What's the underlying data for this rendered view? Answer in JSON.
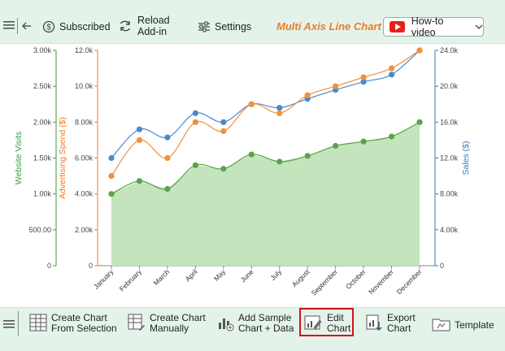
{
  "toolbar": {
    "subscribed_label": "Subscribed",
    "reload_label": "Reload\nAdd-in",
    "settings_label": "Settings",
    "chart_title": "Multi Axis Line Chart",
    "howto_label": "How-to video"
  },
  "bottom_toolbar": {
    "create_selection_label": "Create Chart\nFrom Selection",
    "create_manual_label": "Create Chart\nManually",
    "add_sample_label": "Add Sample\nChart + Data",
    "edit_chart_label": "Edit\nChart",
    "export_chart_label": "Export\nChart",
    "template_label": "Template"
  },
  "chart_data": {
    "type": "line",
    "categories": [
      "January",
      "February",
      "March",
      "April",
      "May",
      "June",
      "July",
      "August",
      "September",
      "October",
      "November",
      "December"
    ],
    "series": [
      {
        "name": "Website Visits",
        "axis": "left1",
        "color": "#5aa34a",
        "values": [
          1000,
          1180,
          1070,
          1400,
          1350,
          1550,
          1450,
          1530,
          1670,
          1730,
          1800,
          2000
        ]
      },
      {
        "name": "Advertising Spend ($)",
        "axis": "left2",
        "color": "#f0903c",
        "values": [
          5000,
          7000,
          6000,
          8000,
          7500,
          9000,
          8500,
          9500,
          10000,
          10500,
          11000,
          12000
        ]
      },
      {
        "name": "Sales ($)",
        "axis": "right",
        "color": "#4a8ac9",
        "values": [
          12000,
          15200,
          14300,
          17000,
          16000,
          18000,
          17600,
          18600,
          19600,
          20500,
          21300,
          24000
        ]
      }
    ],
    "axes": {
      "left1": {
        "label": "Website Visits",
        "min": 0,
        "max": 3000,
        "ticks": [
          "0",
          "500.00",
          "1.00k",
          "1.50k",
          "2.00k",
          "2.50k",
          "3.00k"
        ],
        "color": "#3c9a3c"
      },
      "left2": {
        "label": "Advertising Spend ($)",
        "min": 0,
        "max": 12000,
        "ticks": [
          "0",
          "2.00k",
          "4.00k",
          "6.00k",
          "8.00k",
          "10.0k",
          "12.0k"
        ],
        "color": "#f07a28"
      },
      "right": {
        "label": "Sales ($)",
        "min": 0,
        "max": 24000,
        "ticks": [
          "0",
          "4.00k",
          "8.00k",
          "12.0k",
          "16.0k",
          "20.0k",
          "24.0k"
        ],
        "color": "#3a78b5"
      }
    },
    "area_fill_color": "#c3e4bd",
    "grid": false
  }
}
